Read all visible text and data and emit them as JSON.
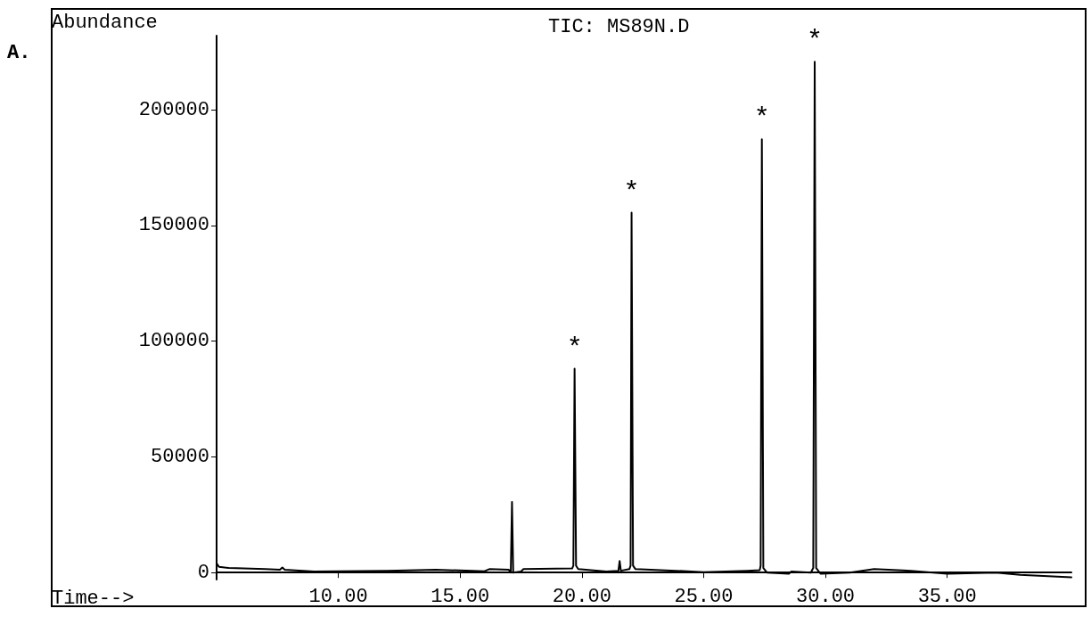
{
  "chart_data": {
    "type": "line",
    "title": "TIC: MS89N.D",
    "xlabel": "Time-->",
    "ylabel": "Abundance",
    "annotations": [
      "A.",
      {
        "text": "*",
        "x": 19.7,
        "y": 88100
      },
      {
        "text": "*",
        "x": 22.04,
        "y": 155500
      },
      {
        "text": "*",
        "x": 27.39,
        "y": 187200
      },
      {
        "text": "*",
        "x": 29.56,
        "y": 220700
      }
    ],
    "series": [
      {
        "color": "#000000",
        "x": [
          5.0,
          5.1,
          5.5,
          7,
          7.6,
          7.7,
          7.8,
          9,
          12,
          14,
          15.5,
          16,
          16.2,
          17.0,
          17.08,
          17.13,
          17.18,
          17.5,
          17.6,
          19.6,
          19.65,
          19.7,
          19.76,
          19.85,
          21,
          21.5,
          21.55,
          21.6,
          21.95,
          22.0,
          22.04,
          22.1,
          22.2,
          24.5,
          25,
          26.8,
          27.3,
          27.34,
          27.39,
          27.45,
          27.6,
          28.5,
          28.6,
          29.4,
          29.5,
          29.56,
          29.62,
          29.8,
          31,
          32,
          33.5,
          35,
          37,
          38,
          40.1
        ],
        "values": [
          4000,
          2500,
          2000,
          1500,
          1200,
          2200,
          1200,
          500,
          800,
          1200,
          800,
          600,
          1500,
          1200,
          0,
          30500,
          0,
          500,
          1500,
          1800,
          3000,
          88100,
          3000,
          1500,
          500,
          800,
          5000,
          800,
          1500,
          3000,
          155500,
          3000,
          1500,
          500,
          200,
          800,
          1000,
          3000,
          187200,
          2000,
          0,
          -500,
          500,
          0,
          2000,
          220700,
          2000,
          -500,
          0,
          1500,
          800,
          -500,
          0,
          -1000,
          -2000
        ]
      }
    ],
    "xlim": [
      5.0,
      40.1
    ],
    "xticks": [
      {
        "value": 10,
        "label": "10.00"
      },
      {
        "value": 15,
        "label": "15.00"
      },
      {
        "value": 20,
        "label": "20.00"
      },
      {
        "value": 25,
        "label": "25.00"
      },
      {
        "value": 30,
        "label": "30.00"
      },
      {
        "value": 35,
        "label": "35.00"
      }
    ],
    "ylim": [
      -3000,
      232000
    ],
    "yticks": [
      0,
      50000,
      100000,
      150000,
      200000
    ],
    "grid": false,
    "marker": "none",
    "line_style": "solid"
  }
}
